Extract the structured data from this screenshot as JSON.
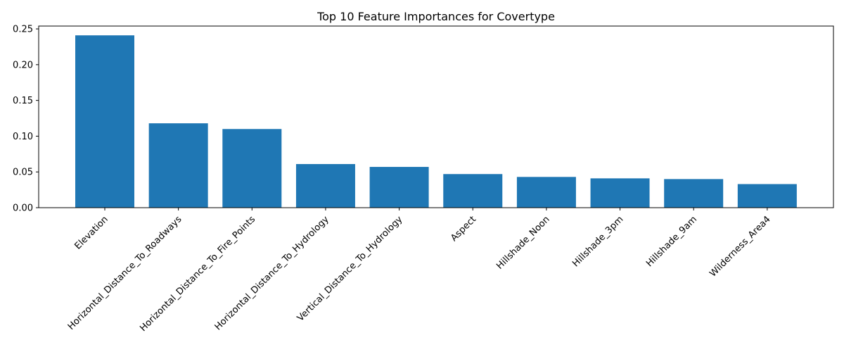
{
  "chart_data": {
    "type": "bar",
    "title": "Top 10 Feature Importances for Covertype",
    "xlabel": "",
    "ylabel": "",
    "categories": [
      "Elevation",
      "Horizontal_Distance_To_Roadways",
      "Horizontal_Distance_To_Fire_Points",
      "Horizontal_Distance_To_Hydrology",
      "Vertical_Distance_To_Hydrology",
      "Aspect",
      "Hillshade_Noon",
      "Hillshade_3pm",
      "Hillshade_9am",
      "Wilderness_Area4"
    ],
    "values": [
      0.241,
      0.118,
      0.11,
      0.061,
      0.057,
      0.047,
      0.043,
      0.041,
      0.04,
      0.033
    ],
    "ylim": [
      0,
      0.254
    ],
    "yticks": [
      0.0,
      0.05,
      0.1,
      0.15,
      0.2,
      0.25
    ],
    "ytick_labels": [
      "0.00",
      "0.05",
      "0.10",
      "0.15",
      "0.20",
      "0.25"
    ],
    "x_tick_rotation_deg": 45,
    "grid": false,
    "legend": "none",
    "bar_color": "#1f77b4"
  }
}
